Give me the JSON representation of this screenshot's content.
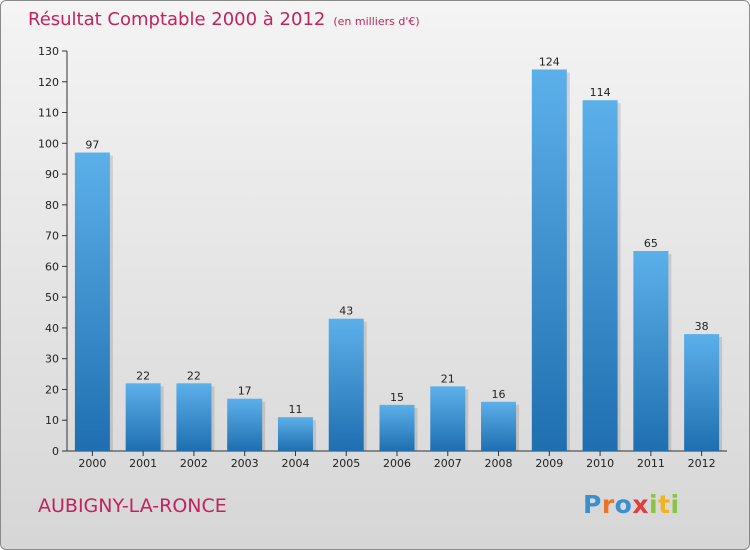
{
  "header": {
    "title": "Résultat Comptable 2000 à 2012",
    "subtitle": "(en milliers d'€)"
  },
  "footer": {
    "town": "AUBIGNY-LA-RONCE",
    "brand_letters": [
      "P",
      "r",
      "o",
      "x",
      "i",
      "t",
      "i"
    ]
  },
  "colors": {
    "title": "#c0235f",
    "bar_top": "#5cb0ea",
    "bar_bottom": "#1f6fb0",
    "brand": [
      "#3a8fd0",
      "#e8742a",
      "#3a8fd0",
      "#e23c3c",
      "#8bc53f",
      "#f2b320",
      "#8bc53f"
    ]
  },
  "chart_data": {
    "type": "bar",
    "title": "Résultat Comptable 2000 à 2012",
    "subtitle": "(en milliers d'€)",
    "categories": [
      "2000",
      "2001",
      "2002",
      "2003",
      "2004",
      "2005",
      "2006",
      "2007",
      "2008",
      "2009",
      "2010",
      "2011",
      "2012"
    ],
    "values": [
      97,
      22,
      22,
      17,
      11,
      43,
      15,
      21,
      16,
      124,
      114,
      65,
      38
    ],
    "ylim": [
      0,
      130
    ],
    "yticks": [
      0,
      10,
      20,
      30,
      40,
      50,
      60,
      70,
      80,
      90,
      100,
      110,
      120,
      130
    ],
    "xlabel": "",
    "ylabel": "",
    "grid": false,
    "legend": "none"
  }
}
